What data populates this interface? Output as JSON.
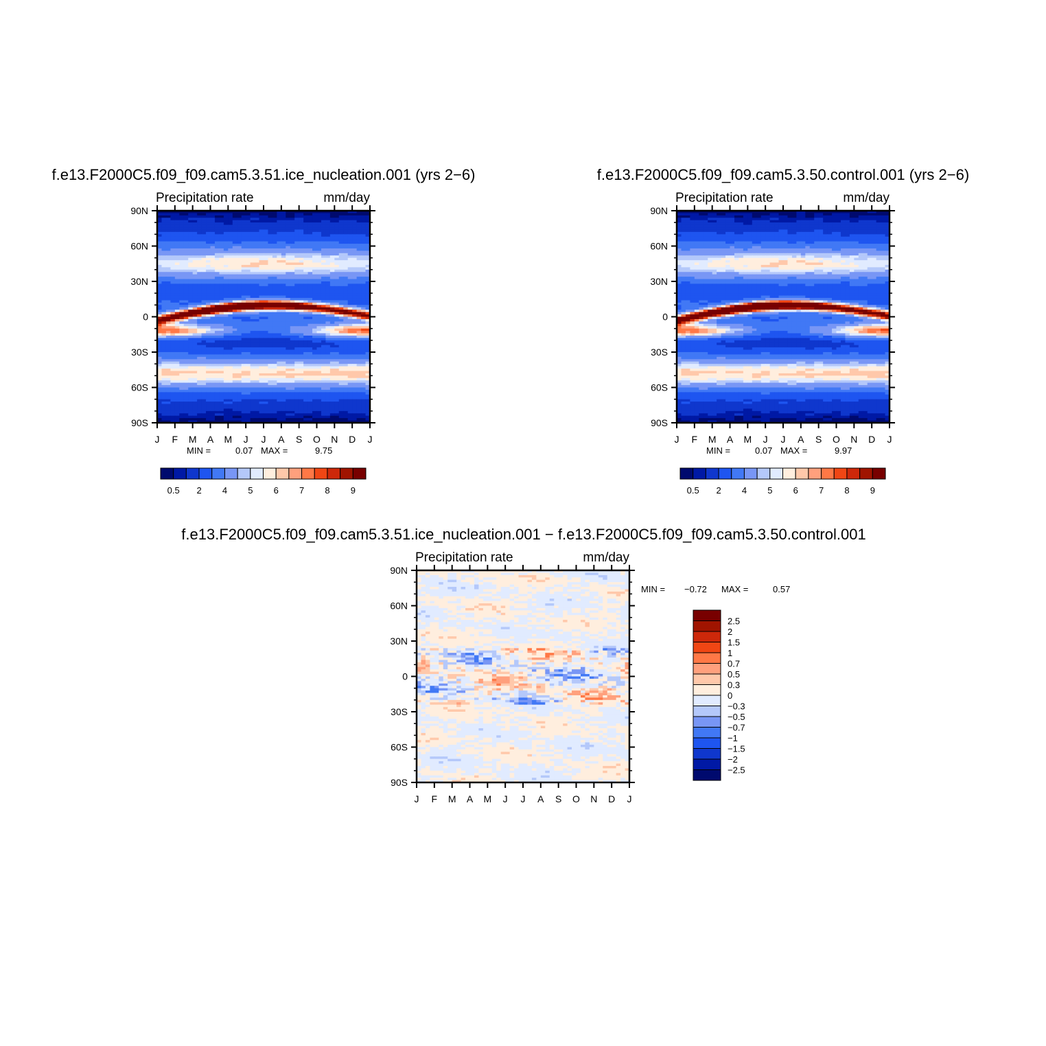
{
  "chart_data": [
    {
      "type": "heatmap",
      "title": "f.e13.F2000C5.f09_f09.cam5.3.51.ice_nucleation.001  (yrs 2−6)",
      "left_label": "Precipitation  rate",
      "units": "mm/day",
      "x_ticks": [
        "J",
        "F",
        "M",
        "A",
        "M",
        "J",
        "J",
        "A",
        "S",
        "O",
        "N",
        "D",
        "J"
      ],
      "y_ticks": [
        "90N",
        "60N",
        "30N",
        "0",
        "30S",
        "60S",
        "90S"
      ],
      "stats": {
        "min_label": "MIN =",
        "min": "0.07",
        "max_label": "MAX =",
        "max": "9.75"
      },
      "colorbar": {
        "orientation": "horizontal",
        "labels": [
          "0.5",
          "2",
          "4",
          "5",
          "6",
          "7",
          "8",
          "9"
        ],
        "colors": [
          "#000a6e",
          "#0019a5",
          "#0f37cd",
          "#1e55f0",
          "#4178f5",
          "#7896f5",
          "#b4c8fa",
          "#e1ebff",
          "#ffeede",
          "#ffc8aa",
          "#ffa07d",
          "#ff7846",
          "#f04614",
          "#cd280a",
          "#a01400",
          "#780000"
        ]
      },
      "itcz": {
        "lat_start": -3,
        "lat_mid": 8,
        "lat_end": 3,
        "peak": 9.75
      }
    },
    {
      "type": "heatmap",
      "title": "f.e13.F2000C5.f09_f09.cam5.3.50.control.001  (yrs 2−6)",
      "left_label": "Precipitation  rate",
      "units": "mm/day",
      "x_ticks": [
        "J",
        "F",
        "M",
        "A",
        "M",
        "J",
        "J",
        "A",
        "S",
        "O",
        "N",
        "D",
        "J"
      ],
      "y_ticks": [
        "90N",
        "60N",
        "30N",
        "0",
        "30S",
        "60S",
        "90S"
      ],
      "stats": {
        "min_label": "MIN =",
        "min": "0.07",
        "max_label": "MAX =",
        "max": "9.97"
      },
      "colorbar": {
        "orientation": "horizontal",
        "labels": [
          "0.5",
          "2",
          "4",
          "5",
          "6",
          "7",
          "8",
          "9"
        ],
        "colors": [
          "#000a6e",
          "#0019a5",
          "#0f37cd",
          "#1e55f0",
          "#4178f5",
          "#7896f5",
          "#b4c8fa",
          "#e1ebff",
          "#ffeede",
          "#ffc8aa",
          "#ffa07d",
          "#ff7846",
          "#f04614",
          "#cd280a",
          "#a01400",
          "#780000"
        ]
      },
      "itcz": {
        "lat_start": -3,
        "lat_mid": 8,
        "lat_end": 3,
        "peak": 9.97
      }
    },
    {
      "type": "heatmap",
      "title": "f.e13.F2000C5.f09_f09.cam5.3.51.ice_nucleation.001  −  f.e13.F2000C5.f09_f09.cam5.3.50.control.001",
      "left_label": "Precipitation  rate",
      "units": "mm/day",
      "x_ticks": [
        "J",
        "F",
        "M",
        "A",
        "M",
        "J",
        "J",
        "A",
        "S",
        "O",
        "N",
        "D",
        "J"
      ],
      "y_ticks": [
        "90N",
        "60N",
        "30N",
        "0",
        "30S",
        "60S",
        "90S"
      ],
      "stats": {
        "min_label": "MIN =",
        "min": "−0.72",
        "max_label": "MAX =",
        "max": "0.57"
      },
      "colorbar": {
        "orientation": "vertical",
        "labels": [
          "2.5",
          "2",
          "1.5",
          "1",
          "0.7",
          "0.5",
          "0.3",
          "0",
          "−0.3",
          "−0.5",
          "−0.7",
          "−1",
          "−1.5",
          "−2",
          "−2.5"
        ],
        "colors": [
          "#780000",
          "#a01400",
          "#cd280a",
          "#f04614",
          "#ff7846",
          "#ffa07d",
          "#ffc8aa",
          "#ffeede",
          "#e1ebff",
          "#b4c8fa",
          "#7896f5",
          "#4178f5",
          "#1e55f0",
          "#0f37cd",
          "#0019a5",
          "#000a6e"
        ]
      }
    }
  ]
}
